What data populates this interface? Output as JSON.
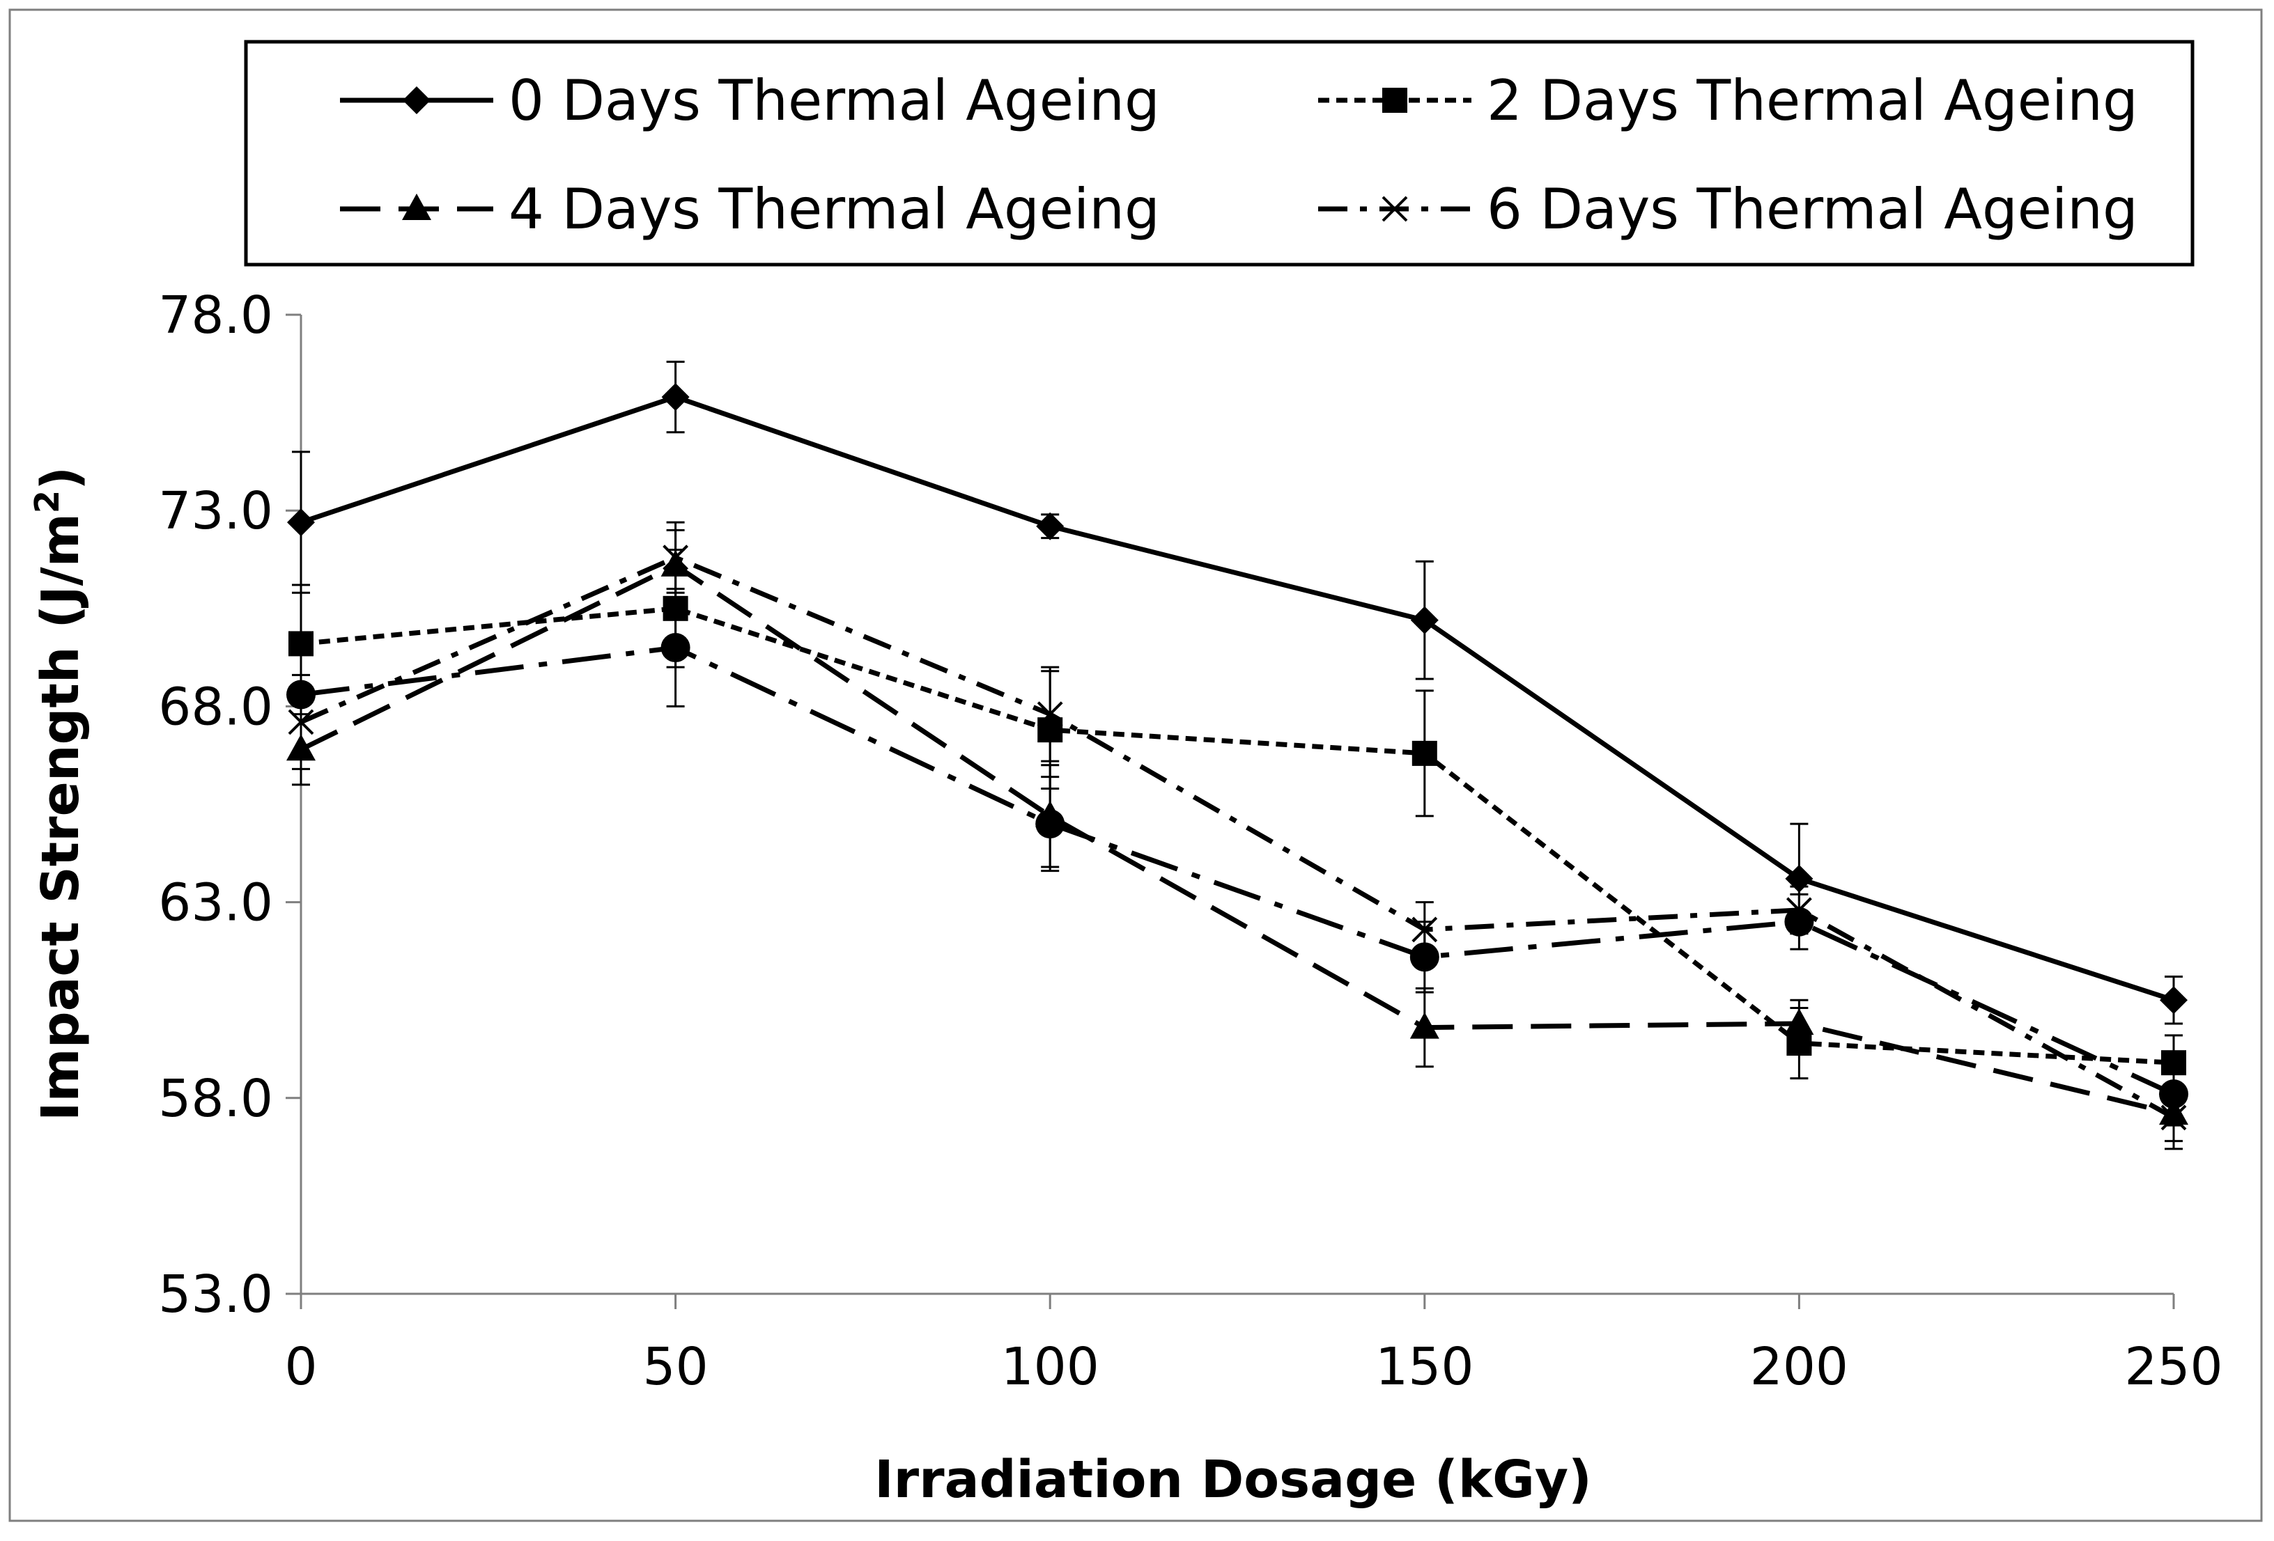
{
  "chart_data": {
    "type": "line",
    "title": "",
    "xlabel": "Irradiation Dosage (kGy)",
    "ylabel": "Impact Strength (J/m²)",
    "ylabel_base": "Impact Strength (J/m",
    "ylabel_sup": "2",
    "ylabel_close": ")",
    "x": [
      0,
      50,
      100,
      150,
      200,
      250
    ],
    "xlim": [
      0,
      250
    ],
    "ylim": [
      53,
      78
    ],
    "x_ticks": [
      0,
      50,
      100,
      150,
      200,
      250
    ],
    "x_tick_labels": [
      "0",
      "50",
      "100",
      "150",
      "200",
      "250"
    ],
    "y_ticks": [
      53,
      58,
      63,
      68,
      73,
      78
    ],
    "y_tick_labels": [
      "53.0",
      "58.0",
      "63.0",
      "68.0",
      "73.0",
      "78.0"
    ],
    "grid": false,
    "legend_position": "top",
    "series": [
      {
        "name": "0 Days Thermal Ageing",
        "marker": "diamond",
        "dash": "solid",
        "values": [
          72.7,
          75.9,
          72.6,
          70.2,
          63.6,
          60.5
        ],
        "errors": [
          1.8,
          0.9,
          0.3,
          1.5,
          1.4,
          0.6
        ]
      },
      {
        "name": "2 Days Thermal Ageing",
        "marker": "square",
        "dash": "short-dash",
        "values": [
          69.6,
          70.5,
          67.4,
          66.8,
          59.4,
          58.9
        ],
        "errors": [
          1.5,
          1.5,
          1.5,
          1.6,
          0.9,
          0.7
        ]
      },
      {
        "name": "4 Days Thermal Ageing",
        "marker": "triangle",
        "dash": "long-dash",
        "values": [
          66.9,
          71.6,
          65.2,
          59.8,
          59.9,
          57.6
        ],
        "errors": [
          0.9,
          0.9,
          1.3,
          1.0,
          0.6,
          0.7
        ]
      },
      {
        "name": "6 Days Thermal Ageing",
        "marker": "x",
        "dash": "dash-dot",
        "values": [
          67.6,
          71.8,
          67.8,
          62.3,
          62.8,
          57.5
        ],
        "errors": [
          1.2,
          0.9,
          1.2,
          0.7,
          0.6,
          0.8
        ]
      },
      {
        "name": "",
        "marker": "circle",
        "dash": "long-dash-dot",
        "values": [
          68.3,
          69.5,
          65.0,
          61.6,
          62.5,
          58.1
        ],
        "errors": [
          1.5,
          1.5,
          1.2,
          0.9,
          0.7,
          0.8
        ]
      }
    ]
  }
}
